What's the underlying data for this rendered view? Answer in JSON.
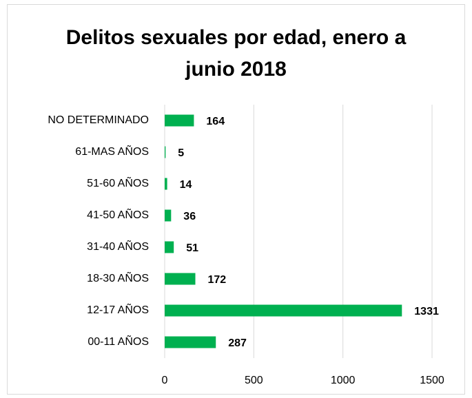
{
  "chart_data": {
    "type": "bar",
    "orientation": "horizontal",
    "title": "Delitos sexuales por edad, enero a junio 2018",
    "categories": [
      "NO DETERMINADO",
      "61-MAS AÑOS",
      "51-60 AÑOS",
      "41-50 AÑOS",
      "31-40 AÑOS",
      "18-30 AÑOS",
      "12-17 AÑOS",
      "00-11 AÑOS"
    ],
    "values": [
      164,
      5,
      14,
      36,
      51,
      172,
      1331,
      287
    ],
    "color": "#00b050",
    "xlim": [
      0,
      1500
    ],
    "xticks": [
      0,
      500,
      1000,
      1500
    ],
    "grid": true
  }
}
